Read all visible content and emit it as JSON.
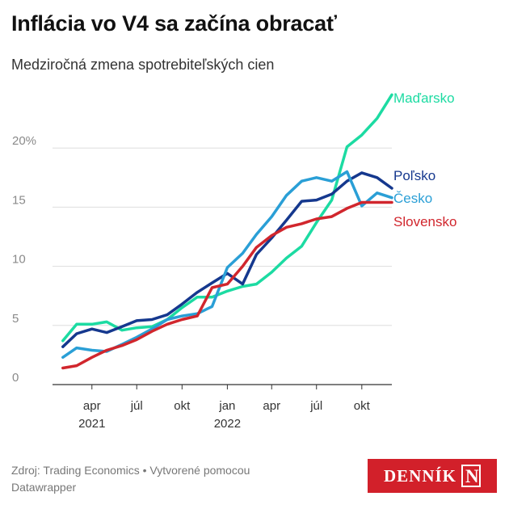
{
  "title": "Inflácia vo V4 sa začína obracať",
  "subtitle": "Medziročná zmena spotrebiteľských cien",
  "footer": {
    "source": "Zdroj: Trading Economics • Vytvorené pomocou Datawrapper"
  },
  "logo": {
    "text": "DENNÍK",
    "mark": "N",
    "color": "#d2202a"
  },
  "chart_data": {
    "type": "line",
    "x": [
      "2021-02",
      "2021-03",
      "2021-04",
      "2021-05",
      "2021-06",
      "2021-07",
      "2021-08",
      "2021-09",
      "2021-10",
      "2021-11",
      "2021-12",
      "2022-01",
      "2022-02",
      "2022-03",
      "2022-04",
      "2022-05",
      "2022-06",
      "2022-07",
      "2022-08",
      "2022-09",
      "2022-10",
      "2022-11",
      "2022-12"
    ],
    "xlim": [
      "2021-01-25",
      "2022-12-15"
    ],
    "ylim": [
      0,
      25
    ],
    "y_ticks": [
      0,
      5,
      10,
      15,
      20
    ],
    "y_tick_labels": [
      "0",
      "5",
      "10",
      "15",
      "20%"
    ],
    "x_ticks": [
      {
        "at": "2021-04",
        "label": "apr",
        "year": "2021"
      },
      {
        "at": "2021-07",
        "label": "júl",
        "year": ""
      },
      {
        "at": "2021-10",
        "label": "okt",
        "year": ""
      },
      {
        "at": "2022-01",
        "label": "jan",
        "year": "2022"
      },
      {
        "at": "2022-04",
        "label": "apr",
        "year": ""
      },
      {
        "at": "2022-07",
        "label": "júl",
        "year": ""
      },
      {
        "at": "2022-10",
        "label": "okt",
        "year": ""
      }
    ],
    "grid": true,
    "legend": "line-end labels",
    "series": [
      {
        "name": "Maďarsko",
        "color": "#1cdba2",
        "values": [
          3.7,
          5.1,
          5.1,
          5.3,
          4.6,
          4.8,
          4.9,
          5.5,
          6.5,
          7.4,
          7.4,
          7.9,
          8.3,
          8.5,
          9.5,
          10.7,
          11.7,
          13.7,
          15.6,
          20.1,
          21.1,
          22.5,
          24.5
        ]
      },
      {
        "name": "Poľsko",
        "color": "#15388e",
        "values": [
          3.2,
          4.3,
          4.7,
          4.4,
          4.9,
          5.4,
          5.5,
          5.9,
          6.8,
          7.8,
          8.6,
          9.4,
          8.5,
          11.0,
          12.4,
          13.9,
          15.5,
          15.6,
          16.1,
          17.2,
          17.9,
          17.5,
          16.6
        ]
      },
      {
        "name": "Česko",
        "color": "#2a9fd6",
        "values": [
          2.3,
          3.1,
          2.9,
          2.8,
          3.4,
          4.0,
          4.7,
          5.5,
          5.8,
          6.0,
          6.6,
          9.9,
          11.1,
          12.7,
          14.2,
          16.0,
          17.2,
          17.5,
          17.2,
          18.0,
          15.1,
          16.2,
          15.8
        ]
      },
      {
        "name": "Slovensko",
        "color": "#d1262d",
        "values": [
          1.4,
          1.6,
          2.3,
          2.9,
          3.3,
          3.8,
          4.5,
          5.1,
          5.5,
          5.8,
          8.2,
          8.5,
          10.0,
          11.6,
          12.6,
          13.3,
          13.6,
          14.0,
          14.2,
          14.9,
          15.4,
          15.4,
          15.4
        ]
      }
    ]
  }
}
